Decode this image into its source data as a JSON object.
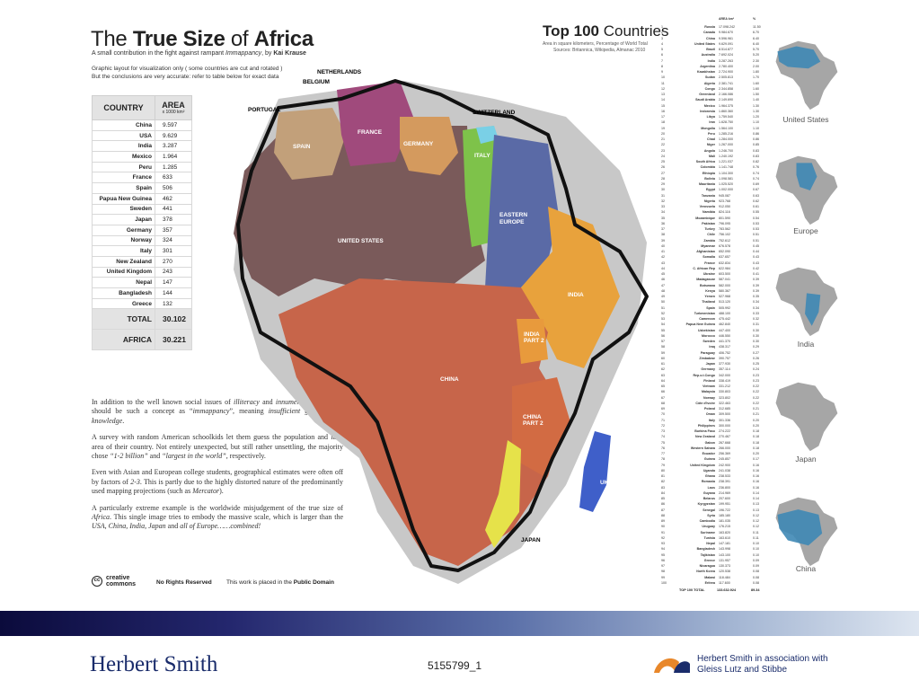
{
  "title": {
    "pre": "The ",
    "bold1": "True Size",
    "mid": " of ",
    "bold2": "Africa"
  },
  "subtitle": {
    "text": "A small contribution in the fight against rampant ",
    "italic": "Immappancy",
    "by": ", by ",
    "author": "Kai Krause"
  },
  "note": {
    "line1": "Graphic layout for visualization only ( some countries are cut and rotated )",
    "line2": "But the conclusions are very accurate: refer to table below for exact data"
  },
  "area_table": {
    "header_country": "COUNTRY",
    "header_area": "AREA",
    "header_unit": "x 1000 km²",
    "rows": [
      {
        "name": "China",
        "area": "9.597"
      },
      {
        "name": "USA",
        "area": "9.629"
      },
      {
        "name": "India",
        "area": "3.287"
      },
      {
        "name": "Mexico",
        "area": "1.964"
      },
      {
        "name": "Peru",
        "area": "1.285"
      },
      {
        "name": "France",
        "area": "633"
      },
      {
        "name": "Spain",
        "area": "506"
      },
      {
        "name": "Papua New Guinea",
        "area": "462"
      },
      {
        "name": "Sweden",
        "area": "441"
      },
      {
        "name": "Japan",
        "area": "378"
      },
      {
        "name": "Germany",
        "area": "357"
      },
      {
        "name": "Norway",
        "area": "324"
      },
      {
        "name": "Italy",
        "area": "301"
      },
      {
        "name": "New Zealand",
        "area": "270"
      },
      {
        "name": "United Kingdom",
        "area": "243"
      },
      {
        "name": "Nepal",
        "area": "147"
      },
      {
        "name": "Bangladesh",
        "area": "144"
      },
      {
        "name": "Greece",
        "area": "132"
      }
    ],
    "total_label": "TOTAL",
    "total_value": "30.102",
    "africa_label": "AFRICA",
    "africa_value": "30.221"
  },
  "body": {
    "p1a": "In addition to the well known social issues of ",
    "p1b": "illiteracy",
    "p1c": " and ",
    "p1d": "innumeracy",
    "p1e": ", there also should be such a concept as “",
    "p1f": "immappancy",
    "p1g": "”, meaning ",
    "p1h": "insufficient geographical knowledge",
    "p1i": ".",
    "p2a": "A survey with random American schoolkids let them guess the population and land area of their country. Not entirely unexpected, but still rather unsettling, the majority chose ",
    "p2b": "“1-2 billion”",
    "p2c": " and ",
    "p2d": "“largest in the world”",
    "p2e": ", respectively.",
    "p3a": "Even with Asian and European college students, geographical estimates were often off by factors of ",
    "p3b": "2-3",
    "p3c": ". This is partly due to the highly distorted nature of the predominantly used mapping projections (such as ",
    "p3d": "Mercator",
    "p3e": ").",
    "p4a": "A particularly extreme example is the worldwide misjudgement of the true size of ",
    "p4b": "Africa",
    "p4c": ". This single image tries to embody the massive scale, which is larger than the ",
    "p4d": "USA, China, India, Japan",
    "p4e": " and ",
    "p4f": "all of Europe……combined!"
  },
  "cc": {
    "logo_symbol": "cc",
    "logo_line1": "creative",
    "logo_line2": "commons",
    "rights": "No Rights Reserved",
    "domain_pre": "This work is placed in the ",
    "domain_bold": "Public Domain"
  },
  "map_labels": {
    "netherlands": "NETHERLANDS",
    "belgium": "BELGIUM",
    "portugal": "PORTUGAL",
    "switzerland": "SWITZERLAND",
    "france": "FRANCE",
    "spain": "SPAIN",
    "germany": "GERMANY",
    "italy": "ITALY",
    "eastern1": "EASTERN",
    "eastern2": "EUROPE",
    "usa": "UNITED STATES",
    "india": "INDIA",
    "india_p2a": "INDIA",
    "india_p2b": "PART 2",
    "china": "CHINA",
    "china_p2a": "CHINA",
    "china_p2b": "PART 2",
    "uk": "UK",
    "japan": "JAPAN"
  },
  "colors": {
    "usa": "#7a5a5a",
    "china": "#c7654a",
    "india": "#e8a23c",
    "europe": "#5a6aa6",
    "france": "#a04a7c",
    "spain": "#c2a07a",
    "germany": "#d49a5e",
    "italy": "#7ec24a",
    "uk": "#3f5fc9",
    "japan": "#e6e24a",
    "map_blue": "#3f88b5",
    "map_gray": "#a6a6a6"
  },
  "top100": {
    "title_bold": "Top 100",
    "title_rest": " Countries",
    "sub1": "Area in square kilometers, Percentage of World Total",
    "sub2": "Sources:  Britannica, Wikipedia, Almanac 2010",
    "head_area": "AREA km²",
    "head_pct": "%",
    "rows": [
      [
        "1",
        "Russia",
        "17.098.242",
        "11.50"
      ],
      [
        "2",
        "Canada",
        "9.984.670",
        "6.70"
      ],
      [
        "3",
        "China",
        "9.596.961",
        "6.40"
      ],
      [
        "4",
        "United States",
        "9.629.091",
        "6.40"
      ],
      [
        "5",
        "Brazil",
        "8.514.877",
        "5.70"
      ],
      [
        "6",
        "Australia",
        "7.692.024",
        "5.20"
      ],
      [
        "7",
        "India",
        "3.287.263",
        "2.30"
      ],
      [
        "8",
        "Argentina",
        "2.780.400",
        "2.00"
      ],
      [
        "9",
        "Kazakhstan",
        "2.724.900",
        "1.80"
      ],
      [
        "10",
        "Sudan",
        "2.505.813",
        "1.70"
      ],
      [
        "11",
        "Algeria",
        "2.381.741",
        "1.60"
      ],
      [
        "12",
        "Congo",
        "2.344.858",
        "1.60"
      ],
      [
        "13",
        "Greenland",
        "2.166.086",
        "1.50"
      ],
      [
        "14",
        "Saudi Arabia",
        "2.149.690",
        "1.40"
      ],
      [
        "15",
        "Mexico",
        "1.964.375",
        "1.30"
      ],
      [
        "16",
        "Indonesia",
        "1.860.360",
        "1.30"
      ],
      [
        "17",
        "Libya",
        "1.759.540",
        "1.20"
      ],
      [
        "18",
        "Iran",
        "1.628.750",
        "1.10"
      ],
      [
        "19",
        "Mongolia",
        "1.564.100",
        "1.10"
      ],
      [
        "20",
        "Peru",
        "1.285.216",
        "0.86"
      ],
      [
        "21",
        "Chad",
        "1.284.000",
        "0.86"
      ],
      [
        "22",
        "Niger",
        "1.267.000",
        "0.85"
      ],
      [
        "23",
        "Angola",
        "1.246.700",
        "0.83"
      ],
      [
        "24",
        "Mali",
        "1.240.192",
        "0.83"
      ],
      [
        "25",
        "South Africa",
        "1.221.037",
        "0.82"
      ],
      [
        "26",
        "Colombia",
        "1.141.748",
        "0.76"
      ],
      [
        "27",
        "Ethiopia",
        "1.104.300",
        "0.74"
      ],
      [
        "28",
        "Bolivia",
        "1.098.581",
        "0.74"
      ],
      [
        "29",
        "Mauritania",
        "1.025.520",
        "0.69"
      ],
      [
        "30",
        "Egypt",
        "1.002.000",
        "0.67"
      ],
      [
        "31",
        "Tanzania",
        "945.087",
        "0.63"
      ],
      [
        "32",
        "Nigeria",
        "923.768",
        "0.62"
      ],
      [
        "33",
        "Venezuela",
        "912.050",
        "0.61"
      ],
      [
        "34",
        "Namibia",
        "824.116",
        "0.55"
      ],
      [
        "35",
        "Mozambique",
        "801.590",
        "0.54"
      ],
      [
        "36",
        "Pakistan",
        "796.095",
        "0.53"
      ],
      [
        "37",
        "Turkey",
        "783.562",
        "0.53"
      ],
      [
        "38",
        "Chile",
        "756.102",
        "0.51"
      ],
      [
        "39",
        "Zambia",
        "752.612",
        "0.51"
      ],
      [
        "40",
        "Myanmar",
        "676.578",
        "0.45"
      ],
      [
        "41",
        "Afghanistan",
        "652.090",
        "0.44"
      ],
      [
        "42",
        "Somalia",
        "637.657",
        "0.43"
      ],
      [
        "43",
        "France",
        "632.834",
        "0.43"
      ],
      [
        "44",
        "C. African Rep",
        "622.984",
        "0.42"
      ],
      [
        "45",
        "Ukraine",
        "603.500",
        "0.41"
      ],
      [
        "46",
        "Madagascar",
        "587.041",
        "0.39"
      ],
      [
        "47",
        "Botswana",
        "582.000",
        "0.39"
      ],
      [
        "48",
        "Kenya",
        "580.367",
        "0.39"
      ],
      [
        "49",
        "Yemen",
        "527.968",
        "0.35"
      ],
      [
        "50",
        "Thailand",
        "513.120",
        "0.34"
      ],
      [
        "51",
        "Spain",
        "505.992",
        "0.34"
      ],
      [
        "52",
        "Turkmenistan",
        "488.100",
        "0.33"
      ],
      [
        "53",
        "Cameroon",
        "475.442",
        "0.32"
      ],
      [
        "54",
        "Papua New Guinea",
        "462.840",
        "0.31"
      ],
      [
        "55",
        "Uzbekistan",
        "447.400",
        "0.30"
      ],
      [
        "56",
        "Morocco",
        "446.550",
        "0.30"
      ],
      [
        "57",
        "Sweden",
        "441.370",
        "0.30"
      ],
      [
        "58",
        "Iraq",
        "438.317",
        "0.29"
      ],
      [
        "59",
        "Paraguay",
        "406.752",
        "0.27"
      ],
      [
        "60",
        "Zimbabwe",
        "390.757",
        "0.26"
      ],
      [
        "61",
        "Japan",
        "377.930",
        "0.25"
      ],
      [
        "62",
        "Germany",
        "357.114",
        "0.24"
      ],
      [
        "63",
        "Rep.o.t.Congo",
        "342.000",
        "0.23"
      ],
      [
        "64",
        "Finland",
        "338.419",
        "0.23"
      ],
      [
        "65",
        "Vietnam",
        "331.212",
        "0.22"
      ],
      [
        "66",
        "Malaysia",
        "330.803",
        "0.22"
      ],
      [
        "67",
        "Norway",
        "323.802",
        "0.22"
      ],
      [
        "68",
        "Côte d'Ivoire",
        "322.463",
        "0.22"
      ],
      [
        "69",
        "Poland",
        "312.685",
        "0.21"
      ],
      [
        "70",
        "Oman",
        "309.500",
        "0.21"
      ],
      [
        "71",
        "Italy",
        "301.336",
        "0.20"
      ],
      [
        "72",
        "Philippines",
        "300.000",
        "0.20"
      ],
      [
        "73",
        "Burkina Faso",
        "274.222",
        "0.18"
      ],
      [
        "74",
        "New Zealand",
        "270.467",
        "0.18"
      ],
      [
        "75",
        "Gabon",
        "267.668",
        "0.18"
      ],
      [
        "76",
        "Western Sahara",
        "266.000",
        "0.18"
      ],
      [
        "77",
        "Ecuador",
        "256.369",
        "0.20"
      ],
      [
        "78",
        "Guinea",
        "245.857",
        "0.17"
      ],
      [
        "79",
        "United Kingdom",
        "242.900",
        "0.16"
      ],
      [
        "80",
        "Uganda",
        "241.038",
        "0.16"
      ],
      [
        "81",
        "Ghana",
        "238.533",
        "0.16"
      ],
      [
        "82",
        "Romania",
        "238.391",
        "0.16"
      ],
      [
        "83",
        "Laos",
        "236.800",
        "0.16"
      ],
      [
        "84",
        "Guyana",
        "214.969",
        "0.14"
      ],
      [
        "85",
        "Belarus",
        "207.600",
        "0.14"
      ],
      [
        "86",
        "Kyrgyzstan",
        "199.951",
        "0.13"
      ],
      [
        "87",
        "Senegal",
        "196.722",
        "0.13"
      ],
      [
        "88",
        "Syria",
        "185.180",
        "0.12"
      ],
      [
        "89",
        "Cambodia",
        "181.035",
        "0.12"
      ],
      [
        "90",
        "Uruguay",
        "176.215",
        "0.12"
      ],
      [
        "91",
        "Suriname",
        "163.820",
        "0.11"
      ],
      [
        "92",
        "Tunisia",
        "163.610",
        "0.11"
      ],
      [
        "93",
        "Nepal",
        "147.181",
        "0.10"
      ],
      [
        "94",
        "Bangladesh",
        "143.998",
        "0.10"
      ],
      [
        "95",
        "Tajikistan",
        "143.100",
        "0.10"
      ],
      [
        "96",
        "Greece",
        "131.957",
        "0.09"
      ],
      [
        "97",
        "Nicaragua",
        "130.373",
        "0.09"
      ],
      [
        "98",
        "North Korea",
        "120.538",
        "0.08"
      ],
      [
        "99",
        "Malawi",
        "118.484",
        "0.08"
      ],
      [
        "100",
        "Eritrea",
        "117.600",
        "0.08"
      ]
    ],
    "total_label": "TOP 100 TOTAL",
    "total_area": "133.632.924",
    "total_pct": "89.34"
  },
  "thumbnails": [
    {
      "caption": "United States"
    },
    {
      "caption": "Europe"
    },
    {
      "caption": "India"
    },
    {
      "caption": "Japan"
    },
    {
      "caption": "China"
    }
  ],
  "footer": {
    "logo": "Herbert Smith",
    "doc_id": "5155799_1",
    "assoc_line1": "Herbert Smith in association with",
    "assoc_line2": "Gleiss Lutz and Stibbe"
  }
}
